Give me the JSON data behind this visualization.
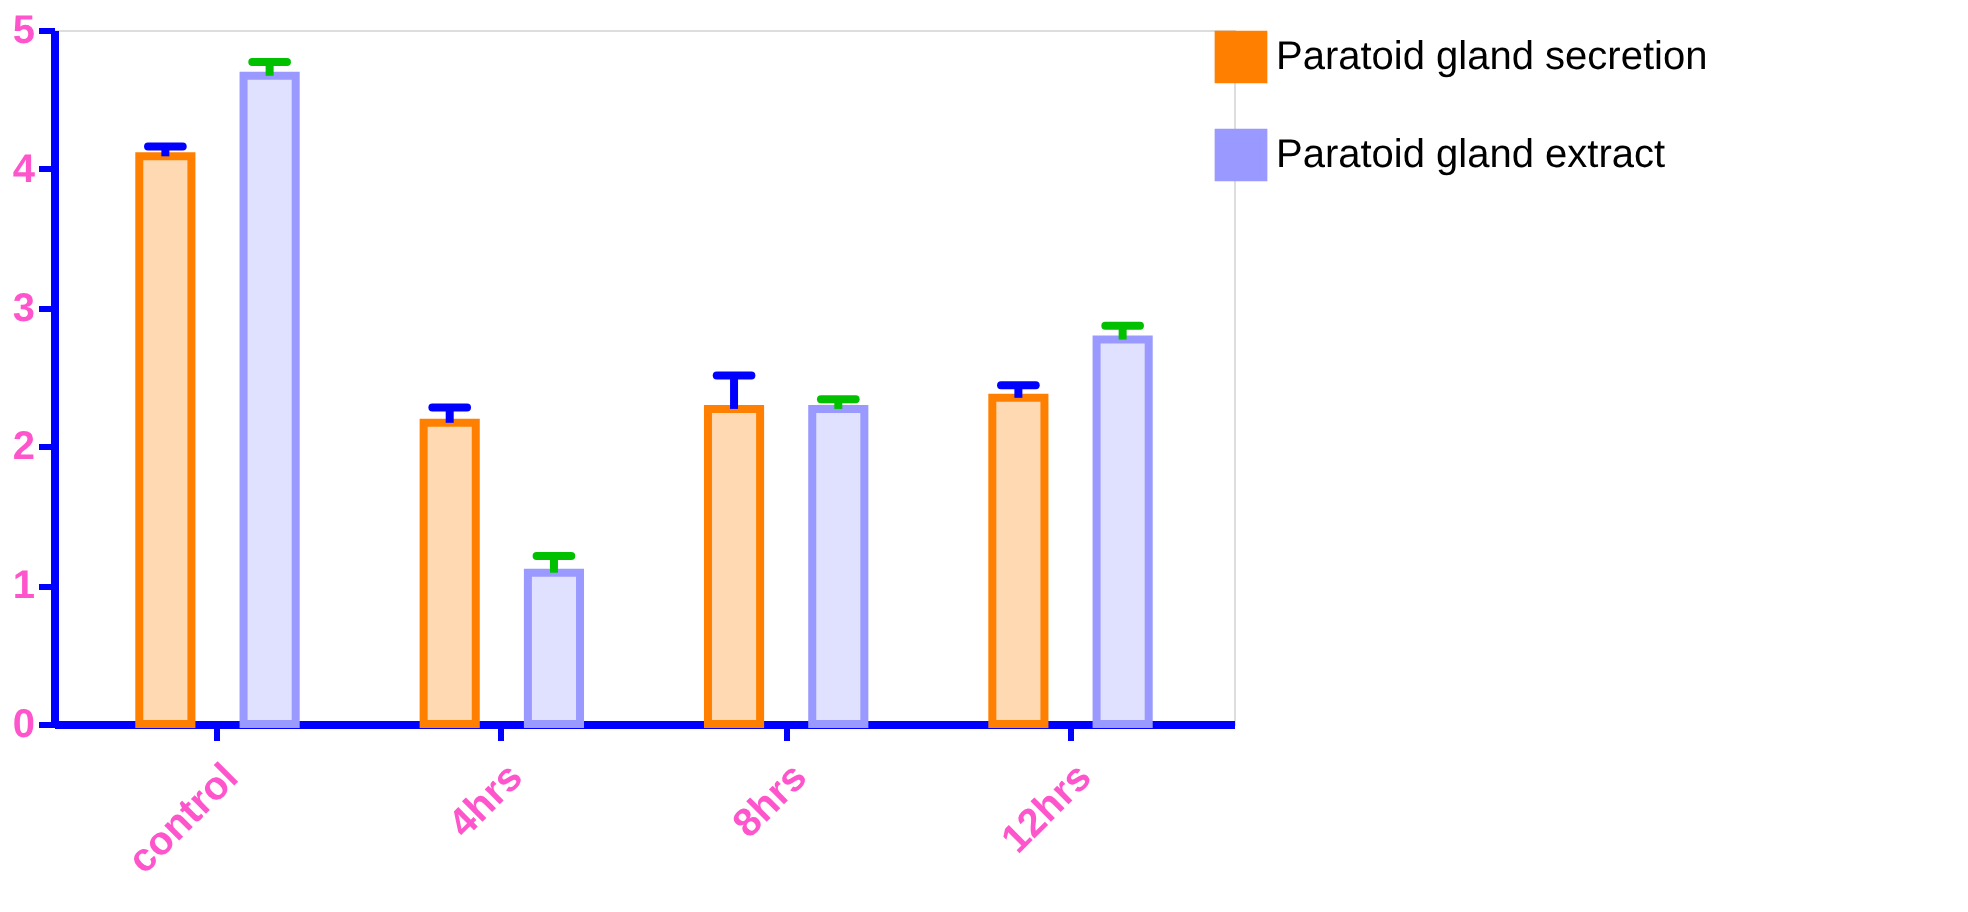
{
  "chart_data": {
    "type": "bar",
    "categories": [
      "control",
      "4hrs",
      "8hrs",
      "12hrs"
    ],
    "series": [
      {
        "name": "Paratoid gland secretion",
        "color": "#ff8000",
        "values": [
          4.09,
          2.17,
          2.27,
          2.35
        ],
        "errors": [
          [
            4.09,
            4.16
          ],
          [
            2.17,
            2.28
          ],
          [
            2.27,
            2.51
          ],
          [
            2.35,
            2.44
          ]
        ]
      },
      {
        "name": "Paratoid gland extract",
        "color": "#9999ff",
        "values": [
          4.67,
          1.09,
          2.27,
          2.77
        ],
        "errors": [
          [
            4.67,
            4.77
          ],
          [
            1.09,
            1.21
          ],
          [
            2.27,
            2.34
          ],
          [
            2.77,
            2.87
          ]
        ]
      }
    ],
    "ylim": [
      0,
      5
    ],
    "yticks": [
      0,
      1,
      2,
      3,
      4,
      5
    ],
    "grid": false,
    "legend": "top right"
  }
}
